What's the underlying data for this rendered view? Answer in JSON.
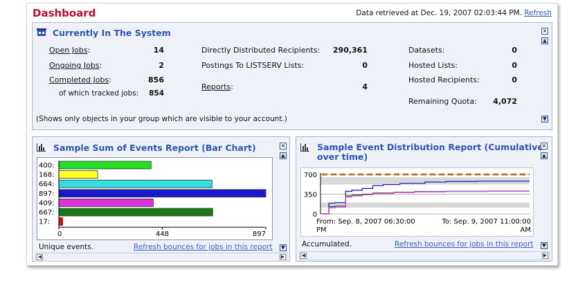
{
  "header": {
    "title": "Dashboard",
    "retrieved_text": "Data retrieved at Dec. 19, 2007 02:03:44 PM.",
    "refresh_label": "Refresh"
  },
  "system": {
    "title": "Currently In The System",
    "open_jobs_label": "Open Jobs",
    "open_jobs_value": "14",
    "ongoing_jobs_label": "Ongoing Jobs",
    "ongoing_jobs_value": "2",
    "completed_jobs_label": "Completed Jobs",
    "completed_jobs_value": "856",
    "tracked_label": "of which tracked jobs:",
    "tracked_value": "854",
    "ddr_label": "Directly Distributed Recipients:",
    "ddr_value": "290,361",
    "postings_label": "Postings To LISTSERV Lists:",
    "postings_value": "0",
    "reports_label": "Reports",
    "reports_value": "4",
    "datasets_label": "Datasets:",
    "datasets_value": "0",
    "hosted_lists_label": "Hosted Lists:",
    "hosted_lists_value": "0",
    "hosted_recipients_label": "Hosted Recipients:",
    "hosted_recipients_value": "0",
    "quota_label": "Remaining Quota:",
    "quota_value": "4,072",
    "note": "(Shows only objects in your group which are visible to your account.)"
  },
  "bar_panel": {
    "title": "Sample Sum of Events Report (Bar Chart)",
    "footer": "Unique events.",
    "link": "Refresh bounces for jobs in this report"
  },
  "line_panel": {
    "title_line1": "Sample Event Distribution Report (Cumulative",
    "title_line2": "over time)",
    "footer": "Accumulated.",
    "link": "Refresh bounces for jobs in this report",
    "from_label": "From: Sep. 8, 2007 06:30:00",
    "from_suffix": "PM",
    "to_label": "To: Sep. 9, 2007 11:00:00",
    "to_suffix": "AM"
  },
  "chart_data": [
    {
      "type": "bar",
      "orientation": "horizontal",
      "categories": [
        "400:",
        "168:",
        "664:",
        "897:",
        "409:",
        "667:",
        "17:"
      ],
      "values": [
        400,
        168,
        664,
        897,
        409,
        667,
        17
      ],
      "colors": [
        "#22dd22",
        "#ffff22",
        "#33dddd",
        "#1a1acc",
        "#dd33dd",
        "#1a7a1a",
        "#dd1111"
      ],
      "xlim": [
        0,
        897
      ],
      "xticks": [
        "0",
        "448",
        "897"
      ],
      "grid": false
    },
    {
      "type": "line",
      "ylim": [
        0,
        700
      ],
      "yticks": [
        "700",
        "350",
        "0"
      ],
      "threshold": 700,
      "threshold_color": "#b8782e",
      "series": [
        {
          "color": "#1a1acc",
          "x": [
            0,
            0.04,
            0.07,
            0.12,
            0.15,
            0.2,
            0.25,
            0.3,
            0.38,
            0.5,
            0.6,
            0.75,
            1.0
          ],
          "y": [
            0,
            190,
            200,
            400,
            420,
            450,
            500,
            520,
            540,
            565,
            575,
            580,
            580
          ]
        },
        {
          "color": "#1a7a1a",
          "x": [
            0,
            0.04,
            0.07,
            0.12,
            0.15,
            0.2,
            0.25,
            0.35,
            0.45,
            0.6,
            0.8,
            1.0
          ],
          "y": [
            0,
            130,
            140,
            320,
            335,
            350,
            370,
            385,
            395,
            400,
            405,
            405
          ]
        },
        {
          "color": "#dd33dd",
          "x": [
            0,
            0.04,
            0.07,
            0.12,
            0.15,
            0.2,
            0.25,
            0.35,
            0.45,
            0.6,
            0.8,
            1.0
          ],
          "y": [
            0,
            110,
            120,
            300,
            320,
            340,
            360,
            380,
            390,
            398,
            402,
            402
          ]
        }
      ]
    }
  ]
}
